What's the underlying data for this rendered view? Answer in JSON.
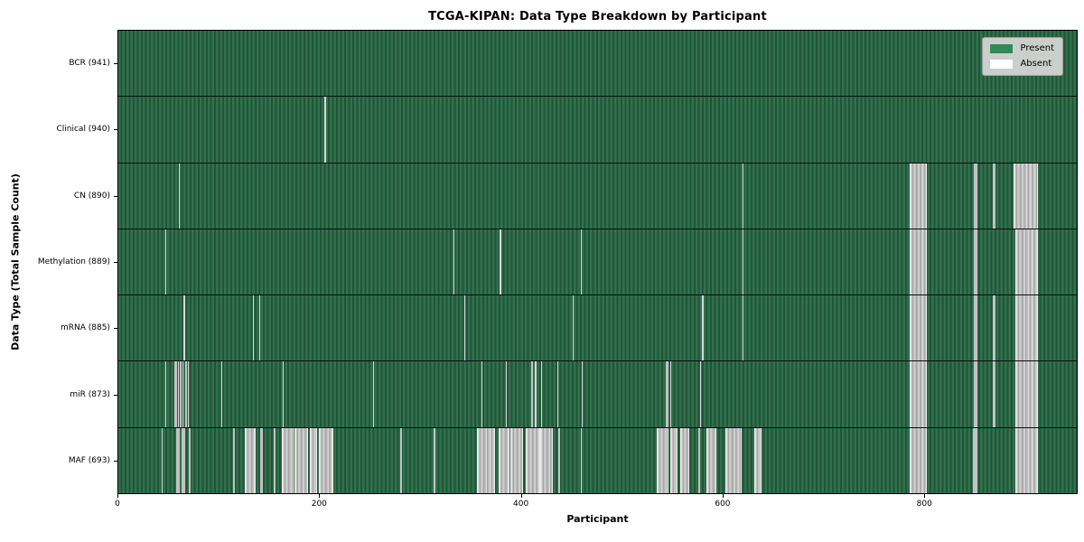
{
  "chart_data": {
    "type": "heatmap",
    "title": "TCGA-KIPAN: Data Type Breakdown by Participant",
    "xlabel": "Participant",
    "ylabel": "Data Type (Total Sample Count)",
    "legend_position": "upper right",
    "legend_items": [
      {
        "label": "Present",
        "color": "#2e8b57"
      },
      {
        "label": "Absent",
        "color": "#ffffff"
      }
    ],
    "x_range": [
      0,
      952
    ],
    "x_ticks": [
      0,
      200,
      400,
      600,
      800
    ],
    "grid": false,
    "colors": {
      "present_stripe_light": "#32704e",
      "present_stripe_dark": "#205638",
      "absent_band_light": "#d9d9d9",
      "absent_band_dark": "#a6a6a6",
      "row_divider": "#0d0d0d",
      "plot_border": "#000000"
    },
    "rows": [
      {
        "label": "BCR (941)",
        "data_type": "BCR",
        "total_samples": 941,
        "absent_ranges": []
      },
      {
        "label": "Clinical (940)",
        "data_type": "Clinical",
        "total_samples": 940,
        "absent_ranges": [
          [
            205,
            1
          ]
        ]
      },
      {
        "label": "CN (890)",
        "data_type": "CN",
        "total_samples": 890,
        "absent_ranges": [
          [
            60,
            1
          ],
          [
            620,
            1
          ],
          [
            786,
            15
          ],
          [
            850,
            3
          ],
          [
            869,
            2
          ],
          [
            889,
            23
          ]
        ]
      },
      {
        "label": "Methylation (889)",
        "data_type": "Methylation",
        "total_samples": 889,
        "absent_ranges": [
          [
            47,
            1
          ],
          [
            333,
            1
          ],
          [
            379,
            1
          ],
          [
            459,
            1
          ],
          [
            620,
            1
          ],
          [
            786,
            15
          ],
          [
            850,
            3
          ],
          [
            891,
            21
          ]
        ]
      },
      {
        "label": "mRNA (885)",
        "data_type": "mRNA",
        "total_samples": 885,
        "absent_ranges": [
          [
            65,
            1
          ],
          [
            134,
            1
          ],
          [
            140,
            1
          ],
          [
            344,
            1
          ],
          [
            451,
            1
          ],
          [
            580,
            1
          ],
          [
            620,
            1
          ],
          [
            786,
            15
          ],
          [
            850,
            3
          ],
          [
            869,
            2
          ],
          [
            891,
            21
          ]
        ]
      },
      {
        "label": "miR (873)",
        "data_type": "miR",
        "total_samples": 873,
        "absent_ranges": [
          [
            47,
            1
          ],
          [
            56,
            2
          ],
          [
            59,
            1
          ],
          [
            61,
            2
          ],
          [
            64,
            1
          ],
          [
            66,
            2
          ],
          [
            69,
            1
          ],
          [
            102,
            1
          ],
          [
            163,
            1
          ],
          [
            253,
            1
          ],
          [
            361,
            1
          ],
          [
            385,
            1
          ],
          [
            410,
            2
          ],
          [
            414,
            1
          ],
          [
            420,
            1
          ],
          [
            436,
            1
          ],
          [
            460,
            1
          ],
          [
            544,
            2
          ],
          [
            548,
            1
          ],
          [
            578,
            1
          ],
          [
            786,
            15
          ],
          [
            850,
            3
          ],
          [
            869,
            2
          ],
          [
            891,
            21
          ]
        ]
      },
      {
        "label": "MAF (693)",
        "data_type": "MAF",
        "total_samples": 693,
        "absent_ranges": [
          [
            43,
            1
          ],
          [
            57,
            4
          ],
          [
            63,
            3
          ],
          [
            70,
            2
          ],
          [
            114,
            2
          ],
          [
            126,
            9
          ],
          [
            141,
            3
          ],
          [
            154,
            2
          ],
          [
            162,
            10
          ],
          [
            175,
            12
          ],
          [
            190,
            6
          ],
          [
            199,
            13
          ],
          [
            280,
            2
          ],
          [
            313,
            2
          ],
          [
            356,
            16
          ],
          [
            378,
            9
          ],
          [
            389,
            11
          ],
          [
            405,
            12
          ],
          [
            419,
            11
          ],
          [
            437,
            2
          ],
          [
            459,
            1
          ],
          [
            535,
            10
          ],
          [
            548,
            6
          ],
          [
            558,
            7
          ],
          [
            576,
            2
          ],
          [
            584,
            8
          ],
          [
            603,
            14
          ],
          [
            632,
            5
          ],
          [
            786,
            15
          ],
          [
            849,
            4
          ],
          [
            891,
            21
          ]
        ]
      }
    ]
  }
}
